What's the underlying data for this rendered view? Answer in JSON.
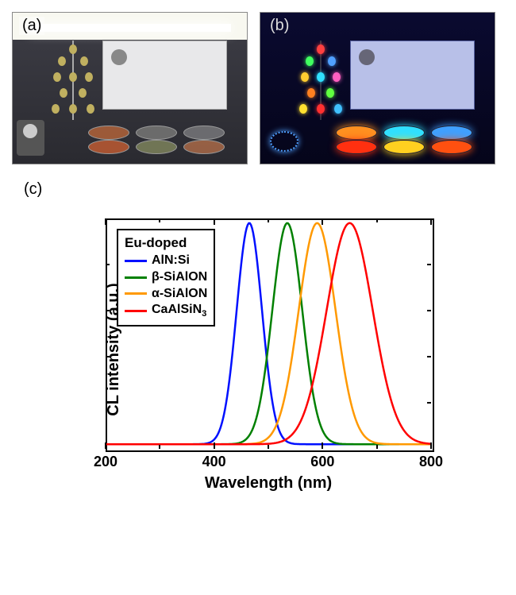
{
  "panels": {
    "a": "(a)",
    "b": "(b)",
    "c": "(c)"
  },
  "chart": {
    "type": "line",
    "xlabel": "Wavelength (nm)",
    "ylabel": "CL intensity (a.u.)",
    "xlim": [
      200,
      800
    ],
    "xticks": [
      200,
      400,
      600,
      800
    ],
    "xtick_labels": [
      "200",
      "400",
      "600",
      "800"
    ],
    "ylim": [
      0,
      1.0
    ],
    "title_fontsize": 20,
    "tick_fontsize": 18,
    "line_width": 2.5,
    "background_color": "#ffffff",
    "axis_color": "#000000",
    "legend": {
      "title": "Eu-doped",
      "position": "upper-left",
      "border_color": "#000000",
      "items": [
        {
          "label": "AlN:Si",
          "color": "#0010ff"
        },
        {
          "label": "β-SiAlON",
          "color": "#008000"
        },
        {
          "label": "α-SiAlON",
          "color": "#ff9900"
        },
        {
          "label": "CaAlSiN3",
          "color": "#ff0000",
          "has_sub": true,
          "main": "CaAlSiN",
          "sub": "3"
        }
      ]
    },
    "series": [
      {
        "name": "AlN:Si",
        "color": "#0010ff",
        "peak_nm": 465,
        "fwhm_nm": 55,
        "amplitude": 1.0
      },
      {
        "name": "beta-SiAlON",
        "color": "#008000",
        "peak_nm": 535,
        "fwhm_nm": 65,
        "amplitude": 1.0
      },
      {
        "name": "alpha-SiAlON",
        "color": "#ff9900",
        "peak_nm": 590,
        "fwhm_nm": 80,
        "amplitude": 1.0
      },
      {
        "name": "CaAlSiN3",
        "color": "#ff0000",
        "peak_nm": 650,
        "fwhm_nm": 100,
        "amplitude": 1.0
      }
    ]
  }
}
